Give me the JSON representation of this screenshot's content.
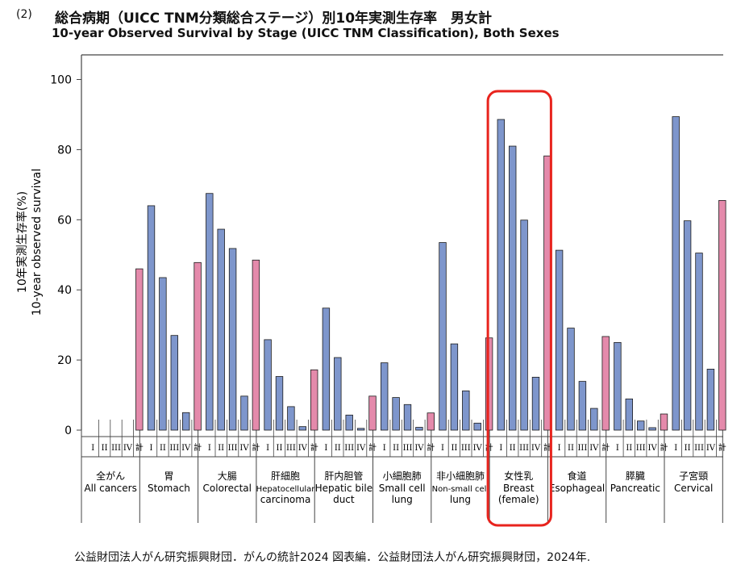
{
  "header": {
    "number": "(2)",
    "title_jp": "総合病期（UICC TNM分類総合ステージ）別10年実測生存率　男女計",
    "title_en": "10-year Observed Survival by Stage (UICC TNM Classification), Both Sexes"
  },
  "footer": {
    "source": "公益財団法人がん研究振興財団．がんの統計2024 図表編．公益財団法人がん研究振興財団，2024年."
  },
  "chart_data": {
    "type": "bar",
    "title": "10-year Observed Survival by Stage (UICC TNM Classification), Both Sexes",
    "ylabel_jp": "10年実測生存率(%)",
    "ylabel_en": "10-year observed survival",
    "ylim": [
      0,
      100
    ],
    "yticks": [
      0,
      20,
      40,
      60,
      80,
      100
    ],
    "stages": [
      "I",
      "II",
      "III",
      "IV",
      "計"
    ],
    "colors": {
      "stage": "#7e96cc",
      "total": "#e48aab",
      "highlight": "#e8231d",
      "axis": "#444444"
    },
    "highlight_group": "女性乳",
    "groups": [
      {
        "jp": "全がん",
        "en": [
          "All cancers"
        ],
        "values": [
          null,
          null,
          null,
          null,
          46.0
        ]
      },
      {
        "jp": "胃",
        "en": [
          "Stomach"
        ],
        "values": [
          64.0,
          43.5,
          27.0,
          5.0,
          47.8
        ]
      },
      {
        "jp": "大腸",
        "en": [
          "Colorectal"
        ],
        "values": [
          67.5,
          57.3,
          51.8,
          9.7,
          48.5
        ]
      },
      {
        "jp": "肝細胞",
        "en": [
          "Hepatocellular",
          "carcinoma"
        ],
        "values": [
          25.8,
          15.3,
          6.7,
          1.0,
          17.2
        ]
      },
      {
        "jp": "肝内胆管",
        "en": [
          "Hepatic bile",
          "duct"
        ],
        "values": [
          34.8,
          20.7,
          4.3,
          0.5,
          9.7
        ]
      },
      {
        "jp": "小細胞肺",
        "en": [
          "Small cell",
          "lung"
        ],
        "values": [
          19.2,
          9.3,
          7.3,
          0.8,
          4.9
        ]
      },
      {
        "jp": "非小細胞肺",
        "en": [
          "Non-small cell",
          "lung"
        ],
        "values": [
          53.5,
          24.6,
          11.2,
          2.0,
          26.3
        ]
      },
      {
        "jp": "女性乳",
        "en": [
          "Breast",
          "(female)"
        ],
        "values": [
          88.6,
          81.0,
          59.9,
          15.1,
          78.2
        ]
      },
      {
        "jp": "食道",
        "en": [
          "Esophageal"
        ],
        "values": [
          51.3,
          29.1,
          13.9,
          6.2,
          26.7
        ]
      },
      {
        "jp": "膵臓",
        "en": [
          "Pancreatic"
        ],
        "values": [
          25.0,
          8.9,
          2.6,
          0.7,
          4.6
        ]
      },
      {
        "jp": "子宮頸",
        "en": [
          "Cervical"
        ],
        "values": [
          89.4,
          59.7,
          50.5,
          17.4,
          65.5
        ]
      }
    ]
  }
}
